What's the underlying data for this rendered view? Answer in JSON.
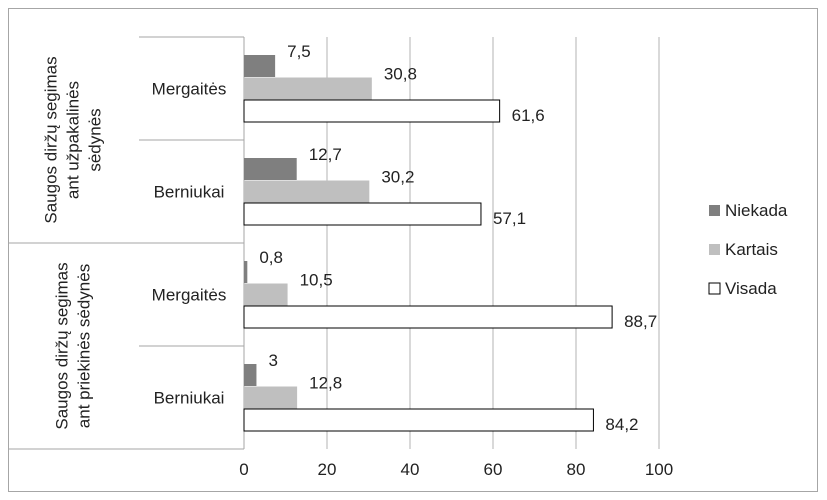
{
  "chart_data": {
    "type": "bar",
    "orientation": "horizontal",
    "groups": [
      {
        "label": "Saugos diržų segimas ant užpakalinės sėdynės",
        "label_lines": [
          "Saugos diržų segimas",
          "ant užpakalinės",
          "sėdynės"
        ],
        "categories": [
          "Mergaitės",
          "Berniukai"
        ]
      },
      {
        "label": "Saugos diržų segimas ant priekinės sėdynės",
        "label_lines": [
          "Saugos diržų segimas",
          "ant priekinės sėdynės"
        ],
        "categories": [
          "Mergaitės",
          "Berniukai"
        ]
      }
    ],
    "series": [
      {
        "name": "Niekada",
        "color": "#7f7f7f",
        "values": [
          7.5,
          12.7,
          0.8,
          3
        ],
        "labels": [
          "7,5",
          "12,7",
          "0,8",
          "3"
        ]
      },
      {
        "name": "Kartais",
        "color": "#bfbfbf",
        "values": [
          30.8,
          30.2,
          10.5,
          12.8
        ],
        "labels": [
          "30,8",
          "30,2",
          "10,5",
          "12,8"
        ]
      },
      {
        "name": "Visada",
        "color": "#ffffff",
        "values": [
          61.6,
          57.1,
          88.7,
          84.2
        ],
        "labels": [
          "61,6",
          "57,1",
          "88,7",
          "84,2"
        ]
      }
    ],
    "xlim": [
      0,
      100
    ],
    "x_ticks": [
      0,
      20,
      40,
      60,
      80,
      100
    ],
    "grid": true,
    "legend_position": "right"
  }
}
